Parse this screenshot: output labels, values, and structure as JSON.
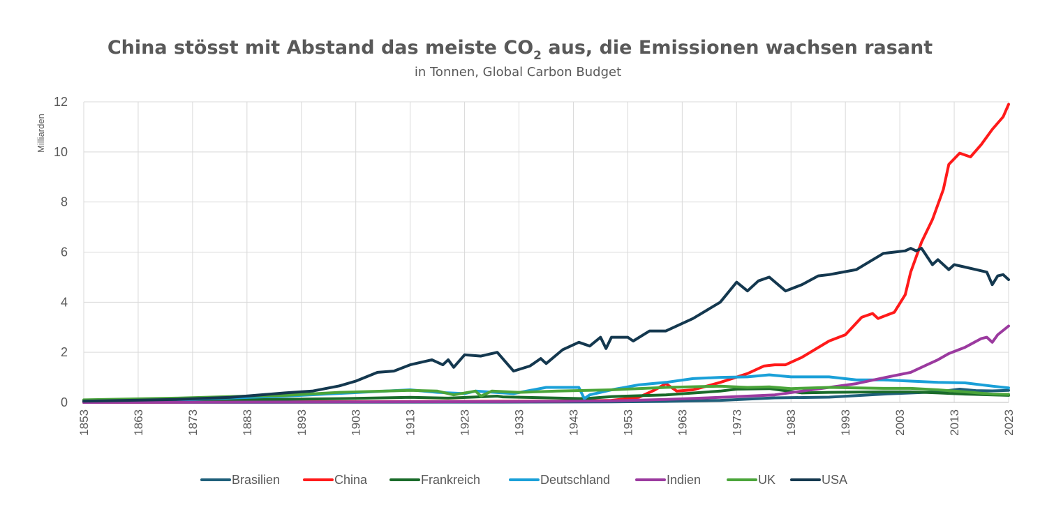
{
  "chart_data": {
    "type": "line",
    "title": "China stösst mit Abstand das meiste CO₂ aus, die Emissionen wachsen rasant",
    "title_parts": {
      "main": "China stösst mit Abstand das meiste CO",
      "sub": "2",
      "rest": " aus, die Emissionen wachsen rasant"
    },
    "subtitle": "in Tonnen, Global Carbon Budget",
    "ylabel": "Milliarden",
    "xlabel": "",
    "xlim": [
      1853,
      2023
    ],
    "ylim": [
      0,
      12
    ],
    "yticks": [
      "0",
      "2",
      "4",
      "6",
      "8",
      "10",
      "12"
    ],
    "xticks": [
      "1853",
      "1863",
      "1873",
      "1883",
      "1893",
      "1903",
      "1913",
      "1923",
      "1933",
      "1943",
      "1953",
      "1963",
      "1973",
      "1983",
      "1993",
      "2003",
      "2013",
      "2023"
    ],
    "grid": true,
    "legend_position": "bottom",
    "series": [
      {
        "name": "Brasilien",
        "color": "#1f5f7a",
        "points": [
          [
            1853,
            0
          ],
          [
            1900,
            0.005
          ],
          [
            1930,
            0.01
          ],
          [
            1950,
            0.02
          ],
          [
            1960,
            0.04
          ],
          [
            1970,
            0.08
          ],
          [
            1980,
            0.18
          ],
          [
            1990,
            0.21
          ],
          [
            2000,
            0.33
          ],
          [
            2010,
            0.42
          ],
          [
            2014,
            0.53
          ],
          [
            2017,
            0.47
          ],
          [
            2020,
            0.46
          ],
          [
            2023,
            0.48
          ]
        ]
      },
      {
        "name": "China",
        "color": "#ff1a1a",
        "points": [
          [
            1853,
            0
          ],
          [
            1940,
            0.05
          ],
          [
            1950,
            0.08
          ],
          [
            1955,
            0.2
          ],
          [
            1958,
            0.5
          ],
          [
            1960,
            0.75
          ],
          [
            1962,
            0.45
          ],
          [
            1965,
            0.5
          ],
          [
            1970,
            0.8
          ],
          [
            1975,
            1.15
          ],
          [
            1978,
            1.45
          ],
          [
            1980,
            1.5
          ],
          [
            1982,
            1.5
          ],
          [
            1985,
            1.8
          ],
          [
            1990,
            2.45
          ],
          [
            1993,
            2.7
          ],
          [
            1996,
            3.4
          ],
          [
            1998,
            3.55
          ],
          [
            1999,
            3.35
          ],
          [
            2002,
            3.6
          ],
          [
            2004,
            4.3
          ],
          [
            2005,
            5.2
          ],
          [
            2007,
            6.4
          ],
          [
            2009,
            7.3
          ],
          [
            2011,
            8.5
          ],
          [
            2012,
            9.5
          ],
          [
            2014,
            9.95
          ],
          [
            2016,
            9.8
          ],
          [
            2018,
            10.3
          ],
          [
            2020,
            10.9
          ],
          [
            2022,
            11.4
          ],
          [
            2023,
            11.9
          ]
        ]
      },
      {
        "name": "Frankreich",
        "color": "#1a6b2a",
        "points": [
          [
            1853,
            0.02
          ],
          [
            1880,
            0.1
          ],
          [
            1900,
            0.15
          ],
          [
            1913,
            0.2
          ],
          [
            1920,
            0.17
          ],
          [
            1929,
            0.25
          ],
          [
            1930,
            0.22
          ],
          [
            1945,
            0.15
          ],
          [
            1950,
            0.23
          ],
          [
            1960,
            0.3
          ],
          [
            1970,
            0.45
          ],
          [
            1973,
            0.53
          ],
          [
            1979,
            0.55
          ],
          [
            1985,
            0.38
          ],
          [
            1990,
            0.4
          ],
          [
            2000,
            0.42
          ],
          [
            2005,
            0.42
          ],
          [
            2010,
            0.38
          ],
          [
            2015,
            0.33
          ],
          [
            2020,
            0.3
          ],
          [
            2023,
            0.28
          ]
        ]
      },
      {
        "name": "Deutschland",
        "color": "#1aa0d8",
        "points": [
          [
            1853,
            0.02
          ],
          [
            1870,
            0.1
          ],
          [
            1890,
            0.25
          ],
          [
            1913,
            0.5
          ],
          [
            1918,
            0.4
          ],
          [
            1923,
            0.35
          ],
          [
            1925,
            0.45
          ],
          [
            1932,
            0.35
          ],
          [
            1938,
            0.6
          ],
          [
            1943,
            0.6
          ],
          [
            1944,
            0.6
          ],
          [
            1945,
            0.15
          ],
          [
            1946,
            0.3
          ],
          [
            1950,
            0.5
          ],
          [
            1955,
            0.7
          ],
          [
            1960,
            0.8
          ],
          [
            1965,
            0.95
          ],
          [
            1970,
            1.0
          ],
          [
            1975,
            1.02
          ],
          [
            1979,
            1.1
          ],
          [
            1983,
            1.02
          ],
          [
            1990,
            1.02
          ],
          [
            1995,
            0.9
          ],
          [
            2000,
            0.9
          ],
          [
            2005,
            0.85
          ],
          [
            2010,
            0.8
          ],
          [
            2015,
            0.78
          ],
          [
            2020,
            0.65
          ],
          [
            2023,
            0.58
          ]
        ]
      },
      {
        "name": "Indien",
        "color": "#9b3a9f",
        "points": [
          [
            1853,
            0
          ],
          [
            1900,
            0.02
          ],
          [
            1930,
            0.03
          ],
          [
            1950,
            0.06
          ],
          [
            1960,
            0.12
          ],
          [
            1970,
            0.2
          ],
          [
            1980,
            0.3
          ],
          [
            1990,
            0.6
          ],
          [
            1995,
            0.75
          ],
          [
            2000,
            0.98
          ],
          [
            2005,
            1.2
          ],
          [
            2008,
            1.5
          ],
          [
            2010,
            1.7
          ],
          [
            2012,
            1.95
          ],
          [
            2015,
            2.2
          ],
          [
            2018,
            2.55
          ],
          [
            2019,
            2.6
          ],
          [
            2020,
            2.4
          ],
          [
            2021,
            2.7
          ],
          [
            2023,
            3.05
          ]
        ]
      },
      {
        "name": "UK",
        "color": "#4ba53a",
        "points": [
          [
            1853,
            0.1
          ],
          [
            1870,
            0.17
          ],
          [
            1883,
            0.25
          ],
          [
            1890,
            0.28
          ],
          [
            1900,
            0.4
          ],
          [
            1913,
            0.48
          ],
          [
            1918,
            0.45
          ],
          [
            1921,
            0.3
          ],
          [
            1925,
            0.45
          ],
          [
            1926,
            0.25
          ],
          [
            1928,
            0.45
          ],
          [
            1933,
            0.4
          ],
          [
            1940,
            0.45
          ],
          [
            1950,
            0.5
          ],
          [
            1960,
            0.6
          ],
          [
            1970,
            0.65
          ],
          [
            1975,
            0.6
          ],
          [
            1979,
            0.62
          ],
          [
            1983,
            0.55
          ],
          [
            1990,
            0.6
          ],
          [
            2000,
            0.56
          ],
          [
            2005,
            0.56
          ],
          [
            2010,
            0.5
          ],
          [
            2015,
            0.42
          ],
          [
            2020,
            0.33
          ],
          [
            2023,
            0.32
          ]
        ]
      },
      {
        "name": "USA",
        "color": "#14384f",
        "points": [
          [
            1853,
            0.05
          ],
          [
            1870,
            0.12
          ],
          [
            1880,
            0.2
          ],
          [
            1890,
            0.38
          ],
          [
            1895,
            0.45
          ],
          [
            1900,
            0.66
          ],
          [
            1903,
            0.85
          ],
          [
            1907,
            1.2
          ],
          [
            1910,
            1.25
          ],
          [
            1913,
            1.5
          ],
          [
            1917,
            1.7
          ],
          [
            1919,
            1.5
          ],
          [
            1920,
            1.7
          ],
          [
            1921,
            1.4
          ],
          [
            1923,
            1.9
          ],
          [
            1926,
            1.85
          ],
          [
            1929,
            2.0
          ],
          [
            1932,
            1.25
          ],
          [
            1935,
            1.45
          ],
          [
            1937,
            1.75
          ],
          [
            1938,
            1.55
          ],
          [
            1941,
            2.1
          ],
          [
            1944,
            2.4
          ],
          [
            1946,
            2.25
          ],
          [
            1948,
            2.6
          ],
          [
            1949,
            2.15
          ],
          [
            1950,
            2.6
          ],
          [
            1953,
            2.6
          ],
          [
            1954,
            2.45
          ],
          [
            1957,
            2.85
          ],
          [
            1960,
            2.85
          ],
          [
            1965,
            3.35
          ],
          [
            1970,
            4.0
          ],
          [
            1973,
            4.8
          ],
          [
            1975,
            4.45
          ],
          [
            1977,
            4.85
          ],
          [
            1979,
            5.0
          ],
          [
            1982,
            4.45
          ],
          [
            1985,
            4.7
          ],
          [
            1988,
            5.05
          ],
          [
            1990,
            5.1
          ],
          [
            1995,
            5.3
          ],
          [
            2000,
            5.95
          ],
          [
            2004,
            6.05
          ],
          [
            2005,
            6.15
          ],
          [
            2006,
            6.05
          ],
          [
            2007,
            6.15
          ],
          [
            2009,
            5.5
          ],
          [
            2010,
            5.7
          ],
          [
            2012,
            5.3
          ],
          [
            2013,
            5.5
          ],
          [
            2015,
            5.4
          ],
          [
            2017,
            5.3
          ],
          [
            2019,
            5.2
          ],
          [
            2020,
            4.7
          ],
          [
            2021,
            5.05
          ],
          [
            2022,
            5.1
          ],
          [
            2023,
            4.9
          ]
        ]
      }
    ]
  }
}
